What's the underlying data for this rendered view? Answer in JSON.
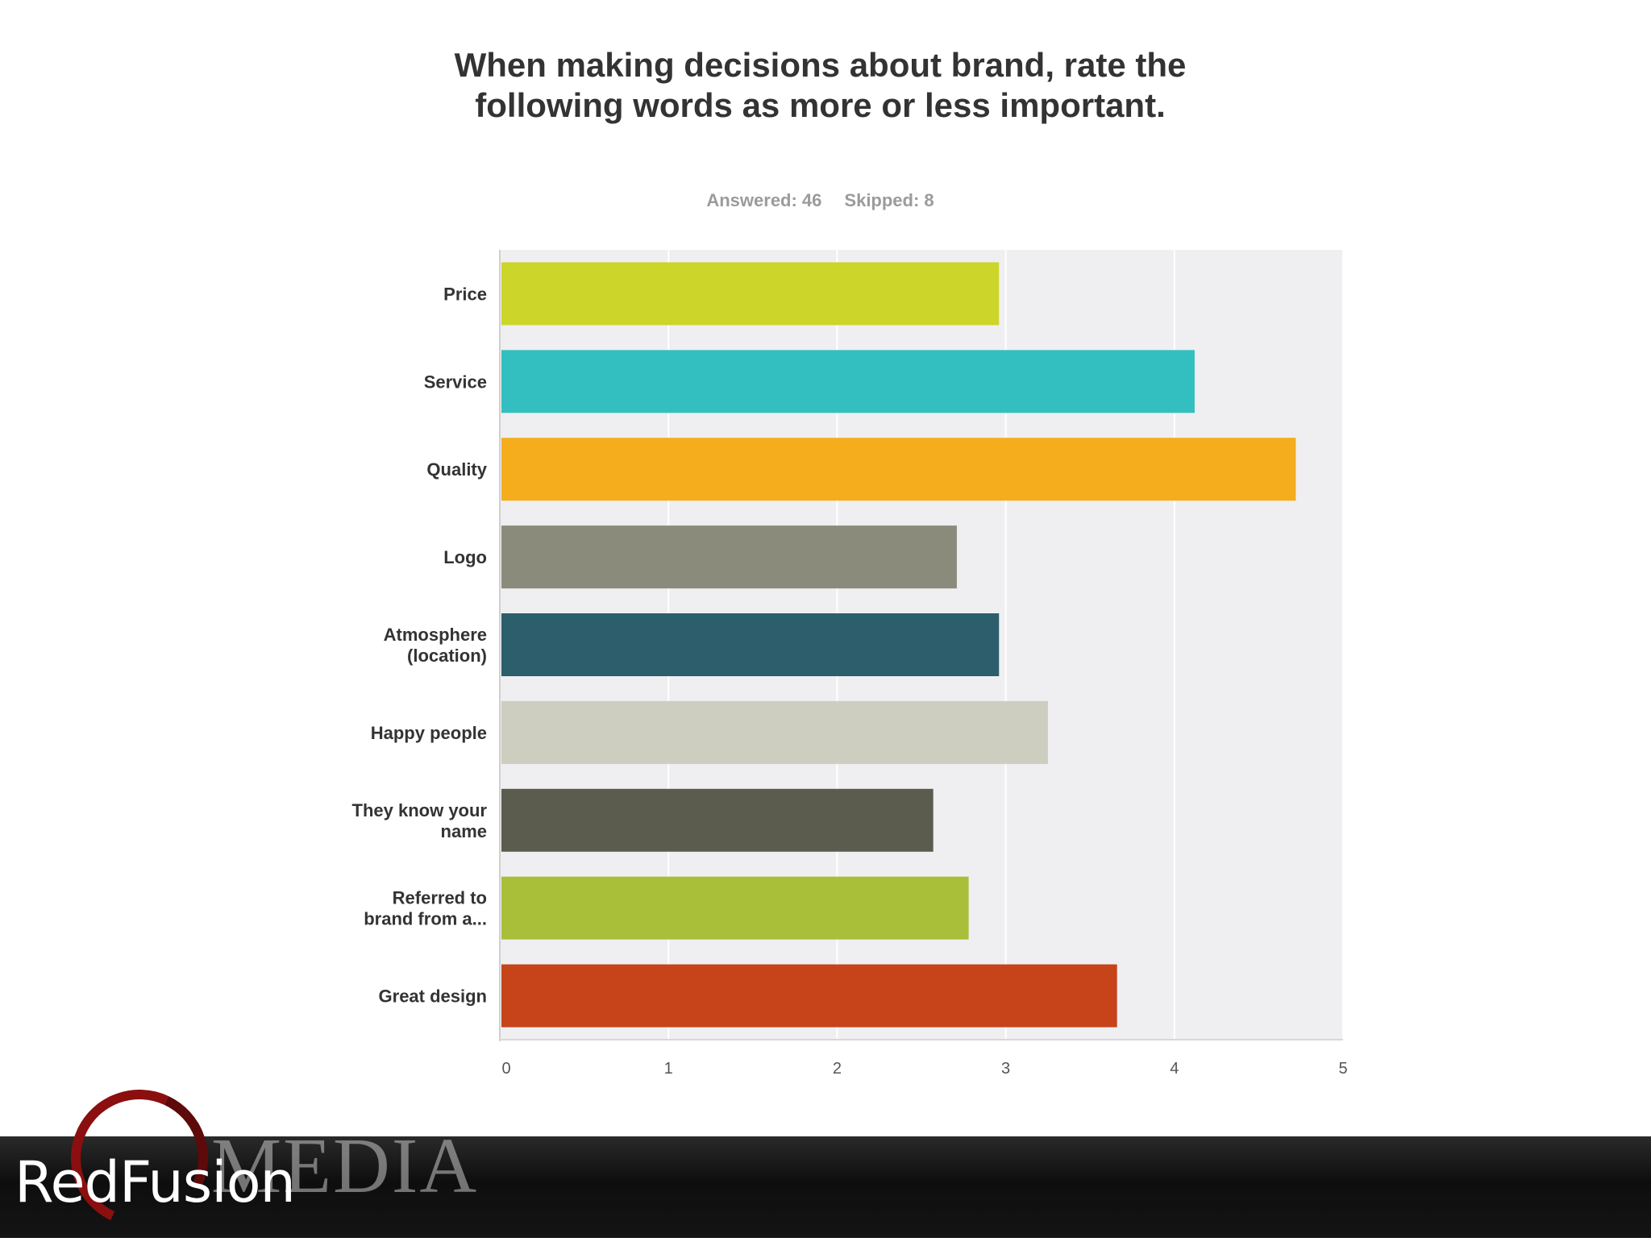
{
  "title": "When making decisions about brand, rate the following words as more or less important.",
  "stats": {
    "answered": "Answered: 46",
    "skipped": "Skipped: 8"
  },
  "logo": {
    "brand": "RedFusion",
    "sub": "MEDIA",
    "ring_color": "#8b0f0f"
  },
  "chart_data": {
    "type": "bar",
    "orientation": "horizontal",
    "categories": [
      [
        "Price"
      ],
      [
        "Service"
      ],
      [
        "Quality"
      ],
      [
        "Logo"
      ],
      [
        "Atmosphere",
        "(location)"
      ],
      [
        "Happy people"
      ],
      [
        "They know your",
        "name"
      ],
      [
        "Referred to",
        "brand from a..."
      ],
      [
        "Great design"
      ]
    ],
    "values": [
      2.96,
      4.12,
      4.72,
      2.71,
      2.96,
      3.25,
      2.57,
      2.78,
      3.66
    ],
    "colors": [
      "#ccd52a",
      "#33bfbf",
      "#f5ad1e",
      "#8b8b7c",
      "#2d5e6c",
      "#cdcdc0",
      "#5b5b4e",
      "#a9bf3a",
      "#c7431a"
    ],
    "xlim": [
      0,
      5
    ],
    "ticks": [
      "0",
      "1",
      "2",
      "3",
      "4",
      "5"
    ],
    "grid": true,
    "plot_background": "#efeff1"
  }
}
